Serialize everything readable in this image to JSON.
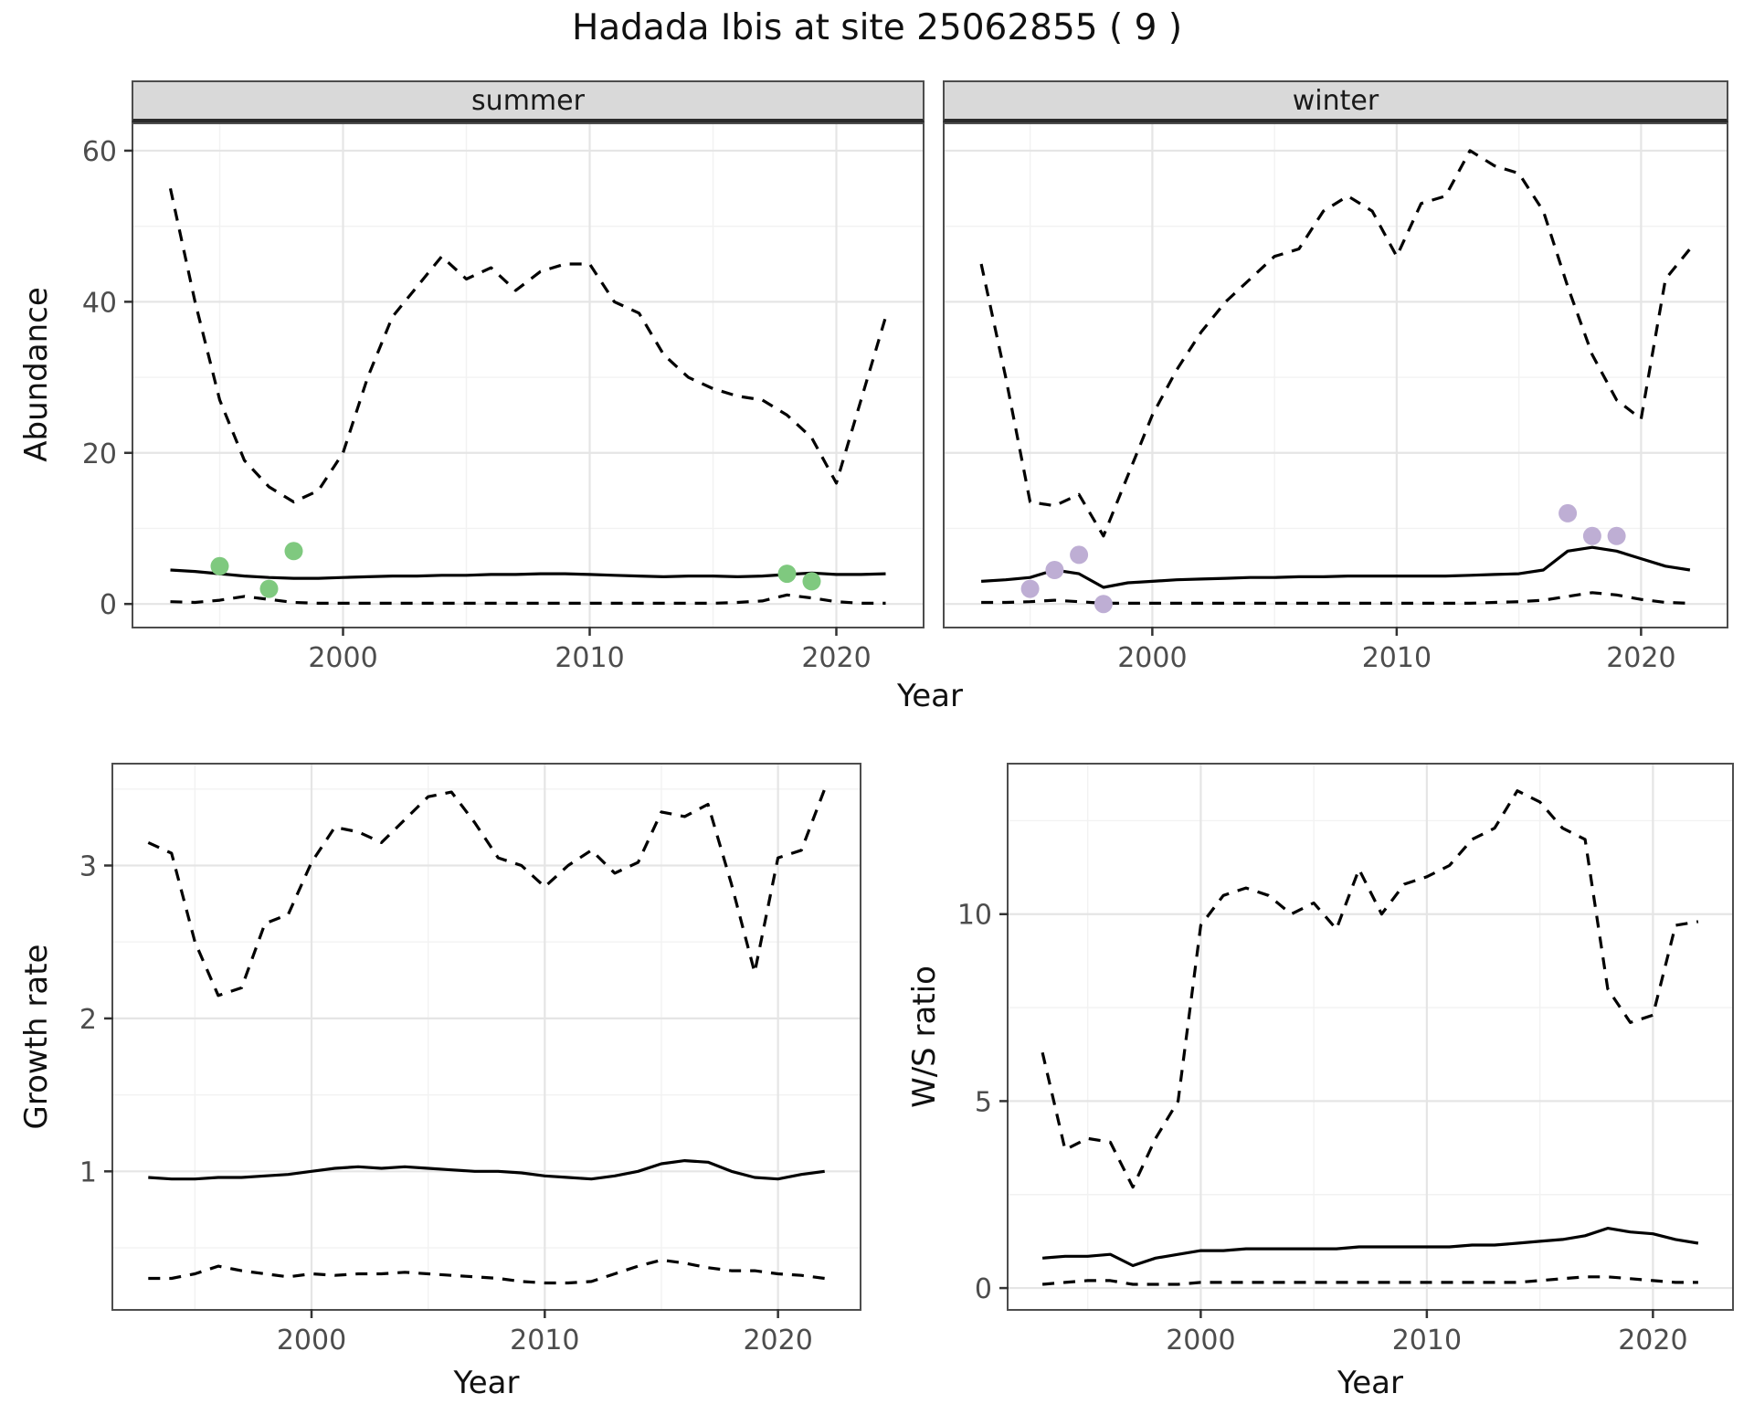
{
  "title": "Hadada Ibis at site 25062855 ( 9 )",
  "chart_data": {
    "type": "line",
    "title": "Hadada Ibis at site 25062855 ( 9 )",
    "top_row_xlabel": "Year",
    "grid": "on",
    "legend": "none",
    "panels": [
      {
        "strip": "summer",
        "ylabel": "Abundance",
        "xlim": [
          1991.5,
          2023.5
        ],
        "ylim": [
          -3,
          63.5
        ],
        "xticks": {
          "values": [
            2000,
            2010,
            2020
          ],
          "labels": [
            "2000",
            "2010",
            "2020"
          ]
        },
        "yticks": {
          "values": [
            0,
            20,
            40,
            60
          ],
          "labels": [
            "0",
            "20",
            "40",
            "60"
          ],
          "show_labels": true
        },
        "xminor": [
          1995,
          2005,
          2015
        ],
        "yminor": [
          10,
          30,
          50
        ],
        "years": [
          1993,
          1994,
          1995,
          1996,
          1997,
          1998,
          1999,
          2000,
          2001,
          2002,
          2003,
          2004,
          2005,
          2006,
          2007,
          2008,
          2009,
          2010,
          2011,
          2012,
          2013,
          2014,
          2015,
          2016,
          2017,
          2018,
          2019,
          2020,
          2021,
          2022
        ],
        "series": [
          {
            "name": "upper-ci",
            "style": "dashed",
            "color": "#000000",
            "values": [
              55,
              40,
              27,
              19,
              15.5,
              13.5,
              15,
              20,
              30,
              38,
              42,
              46,
              43,
              44.5,
              41.5,
              44,
              45,
              45,
              40,
              38.5,
              33,
              30,
              28.5,
              27.5,
              27,
              25,
              22,
              16,
              27,
              38
            ]
          },
          {
            "name": "median",
            "style": "solid",
            "color": "#000000",
            "values": [
              4.5,
              4.3,
              4.0,
              3.7,
              3.5,
              3.4,
              3.4,
              3.5,
              3.6,
              3.7,
              3.7,
              3.8,
              3.8,
              3.9,
              3.9,
              4.0,
              4.0,
              3.9,
              3.8,
              3.7,
              3.6,
              3.7,
              3.7,
              3.6,
              3.7,
              3.9,
              4.1,
              3.9,
              3.9,
              4.0
            ]
          },
          {
            "name": "lower-ci",
            "style": "dashed",
            "color": "#000000",
            "values": [
              0.3,
              0.2,
              0.5,
              1.0,
              0.6,
              0.2,
              0.1,
              0.1,
              0.1,
              0.1,
              0.1,
              0.1,
              0.1,
              0.1,
              0.1,
              0.1,
              0.1,
              0.1,
              0.1,
              0.1,
              0.1,
              0.1,
              0.1,
              0.2,
              0.4,
              1.2,
              0.8,
              0.3,
              0.1,
              0.1
            ]
          }
        ],
        "points": {
          "name": "observed-summer",
          "color": "#7fc97f",
          "data": [
            [
              1995,
              5
            ],
            [
              1997,
              2
            ],
            [
              1998,
              7
            ],
            [
              2018,
              4
            ],
            [
              2019,
              3
            ]
          ]
        }
      },
      {
        "strip": "winter",
        "xlim": [
          1991.5,
          2023.5
        ],
        "ylim": [
          -3,
          63.5
        ],
        "xticks": {
          "values": [
            2000,
            2010,
            2020
          ],
          "labels": [
            "2000",
            "2010",
            "2020"
          ]
        },
        "yticks": {
          "values": [
            0,
            20,
            40,
            60
          ],
          "labels": [
            "0",
            "20",
            "40",
            "60"
          ],
          "show_labels": false
        },
        "xminor": [
          1995,
          2005,
          2015
        ],
        "yminor": [
          10,
          30,
          50
        ],
        "years": [
          1993,
          1994,
          1995,
          1996,
          1997,
          1998,
          1999,
          2000,
          2001,
          2002,
          2003,
          2004,
          2005,
          2006,
          2007,
          2008,
          2009,
          2010,
          2011,
          2012,
          2013,
          2014,
          2015,
          2016,
          2017,
          2018,
          2019,
          2020,
          2021,
          2022
        ],
        "series": [
          {
            "name": "upper-ci",
            "style": "dashed",
            "color": "#000000",
            "values": [
              45,
              30,
              13.5,
              13,
              14.5,
              9,
              17,
              25,
              31,
              36,
              40,
              43,
              46,
              47,
              52,
              54,
              52,
              46,
              53,
              54,
              60,
              58,
              57,
              52,
              42,
              33,
              27,
              24.5,
              43,
              47
            ]
          },
          {
            "name": "median",
            "style": "solid",
            "color": "#000000",
            "values": [
              3.0,
              3.2,
              3.5,
              4.5,
              4.0,
              2.2,
              2.8,
              3.0,
              3.2,
              3.3,
              3.4,
              3.5,
              3.5,
              3.6,
              3.6,
              3.7,
              3.7,
              3.7,
              3.7,
              3.7,
              3.8,
              3.9,
              4.0,
              4.5,
              7.0,
              7.5,
              7.0,
              6.0,
              5.0,
              4.5
            ]
          },
          {
            "name": "lower-ci",
            "style": "dashed",
            "color": "#000000",
            "values": [
              0.2,
              0.2,
              0.3,
              0.5,
              0.3,
              0.1,
              0.1,
              0.1,
              0.1,
              0.1,
              0.1,
              0.1,
              0.1,
              0.1,
              0.1,
              0.1,
              0.1,
              0.1,
              0.1,
              0.1,
              0.1,
              0.2,
              0.3,
              0.5,
              1.0,
              1.5,
              1.2,
              0.6,
              0.2,
              0.1
            ]
          }
        ],
        "points": {
          "name": "observed-winter",
          "color": "#beaed4",
          "data": [
            [
              1995,
              2
            ],
            [
              1996,
              4.5
            ],
            [
              1997,
              6.5
            ],
            [
              1998,
              0
            ],
            [
              2017,
              12
            ],
            [
              2018,
              9
            ],
            [
              2019,
              9
            ]
          ]
        }
      },
      {
        "ylabel": "Growth rate",
        "xlabel": "Year",
        "xlim": [
          1991.5,
          2023.5
        ],
        "ylim": [
          0.1,
          3.66
        ],
        "xticks": {
          "values": [
            2000,
            2010,
            2020
          ],
          "labels": [
            "2000",
            "2010",
            "2020"
          ]
        },
        "yticks": {
          "values": [
            1,
            2,
            3
          ],
          "labels": [
            "1",
            "2",
            "3"
          ],
          "show_labels": true
        },
        "xminor": [
          1995,
          2005,
          2015
        ],
        "yminor": [
          0.5,
          1.5,
          2.5,
          3.5
        ],
        "years": [
          1993,
          1994,
          1995,
          1996,
          1997,
          1998,
          1999,
          2000,
          2001,
          2002,
          2003,
          2004,
          2005,
          2006,
          2007,
          2008,
          2009,
          2010,
          2011,
          2012,
          2013,
          2014,
          2015,
          2016,
          2017,
          2018,
          2019,
          2020,
          2021,
          2022
        ],
        "series": [
          {
            "name": "upper-ci",
            "style": "dashed",
            "color": "#000000",
            "values": [
              3.15,
              3.08,
              2.5,
              2.15,
              2.2,
              2.62,
              2.68,
              3.02,
              3.25,
              3.22,
              3.15,
              3.3,
              3.45,
              3.48,
              3.28,
              3.05,
              3.0,
              2.86,
              3.0,
              3.1,
              2.95,
              3.02,
              3.35,
              3.32,
              3.4,
              2.88,
              2.3,
              3.05,
              3.1,
              3.5
            ]
          },
          {
            "name": "median",
            "style": "solid",
            "color": "#000000",
            "values": [
              0.96,
              0.95,
              0.95,
              0.96,
              0.96,
              0.97,
              0.98,
              1.0,
              1.02,
              1.03,
              1.02,
              1.03,
              1.02,
              1.01,
              1.0,
              1.0,
              0.99,
              0.97,
              0.96,
              0.95,
              0.97,
              1.0,
              1.05,
              1.07,
              1.06,
              1.0,
              0.96,
              0.95,
              0.98,
              1.0
            ]
          },
          {
            "name": "lower-ci",
            "style": "dashed",
            "color": "#000000",
            "values": [
              0.3,
              0.3,
              0.33,
              0.38,
              0.35,
              0.33,
              0.31,
              0.33,
              0.32,
              0.33,
              0.33,
              0.34,
              0.33,
              0.32,
              0.31,
              0.3,
              0.28,
              0.27,
              0.27,
              0.28,
              0.33,
              0.38,
              0.42,
              0.4,
              0.37,
              0.35,
              0.35,
              0.33,
              0.32,
              0.3
            ]
          }
        ]
      },
      {
        "ylabel": "W/S ratio",
        "xlabel": "Year",
        "xlim": [
          1991.5,
          2023.5
        ],
        "ylim": [
          -0.56,
          14.0
        ],
        "xticks": {
          "values": [
            2000,
            2010,
            2020
          ],
          "labels": [
            "2000",
            "2010",
            "2020"
          ]
        },
        "yticks": {
          "values": [
            0,
            5,
            10
          ],
          "labels": [
            "0",
            "5",
            "10"
          ],
          "show_labels": true
        },
        "xminor": [
          1995,
          2005,
          2015
        ],
        "yminor": [
          2.5,
          7.5,
          12.5
        ],
        "years": [
          1993,
          1994,
          1995,
          1996,
          1997,
          1998,
          1999,
          2000,
          2001,
          2002,
          2003,
          2004,
          2005,
          2006,
          2007,
          2008,
          2009,
          2010,
          2011,
          2012,
          2013,
          2014,
          2015,
          2016,
          2017,
          2018,
          2019,
          2020,
          2021,
          2022
        ],
        "series": [
          {
            "name": "upper-ci",
            "style": "dashed",
            "color": "#000000",
            "values": [
              6.3,
              3.7,
              4.0,
              3.9,
              2.7,
              4.0,
              5.0,
              9.7,
              10.5,
              10.7,
              10.5,
              10.0,
              10.3,
              9.6,
              11.2,
              10.0,
              10.8,
              11.0,
              11.3,
              12.0,
              12.3,
              13.3,
              13.0,
              12.3,
              12.0,
              8.0,
              7.1,
              7.3,
              9.7,
              9.8
            ]
          },
          {
            "name": "median",
            "style": "solid",
            "color": "#000000",
            "values": [
              0.8,
              0.85,
              0.85,
              0.9,
              0.6,
              0.8,
              0.9,
              1.0,
              1.0,
              1.05,
              1.05,
              1.05,
              1.05,
              1.05,
              1.1,
              1.1,
              1.1,
              1.1,
              1.1,
              1.15,
              1.15,
              1.2,
              1.25,
              1.3,
              1.4,
              1.6,
              1.5,
              1.45,
              1.3,
              1.2
            ]
          },
          {
            "name": "lower-ci",
            "style": "dashed",
            "color": "#000000",
            "values": [
              0.1,
              0.15,
              0.2,
              0.2,
              0.1,
              0.1,
              0.1,
              0.15,
              0.15,
              0.15,
              0.15,
              0.15,
              0.15,
              0.15,
              0.15,
              0.15,
              0.15,
              0.15,
              0.15,
              0.15,
              0.15,
              0.15,
              0.2,
              0.25,
              0.3,
              0.3,
              0.25,
              0.2,
              0.15,
              0.15
            ]
          }
        ]
      }
    ],
    "style": {
      "grid_major_color": "#e5e5e5",
      "grid_minor_color": "#f2f2f2",
      "tick_label_color": "#4d4d4d",
      "line_color": "#000000",
      "summer_point_color": "#7fc97f",
      "winter_point_color": "#beaed4",
      "strip_bg": "#d9d9d9"
    }
  }
}
